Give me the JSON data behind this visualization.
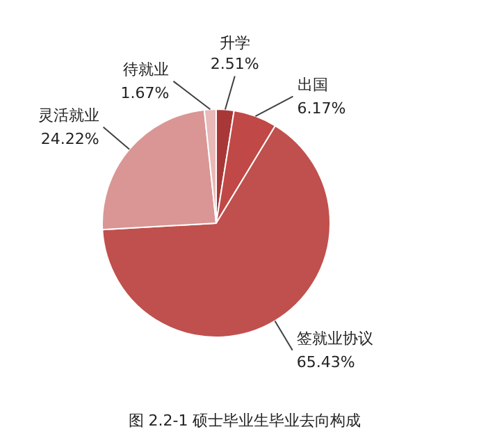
{
  "chart_data": {
    "type": "pie",
    "categories": [
      "升学",
      "出国",
      "签就业协议",
      "灵活就业",
      "待就业"
    ],
    "values": [
      2.51,
      6.17,
      65.43,
      24.22,
      1.67
    ],
    "value_labels": [
      "2.51%",
      "6.17%",
      "65.43%",
      "24.22%",
      "1.67%"
    ],
    "colors": [
      "#a83838",
      "#c04846",
      "#c0504d",
      "#d99694",
      "#e8b9b8"
    ],
    "annotations": [
      "图 2.2-1 硕士毕业生毕业去向构成"
    ]
  }
}
